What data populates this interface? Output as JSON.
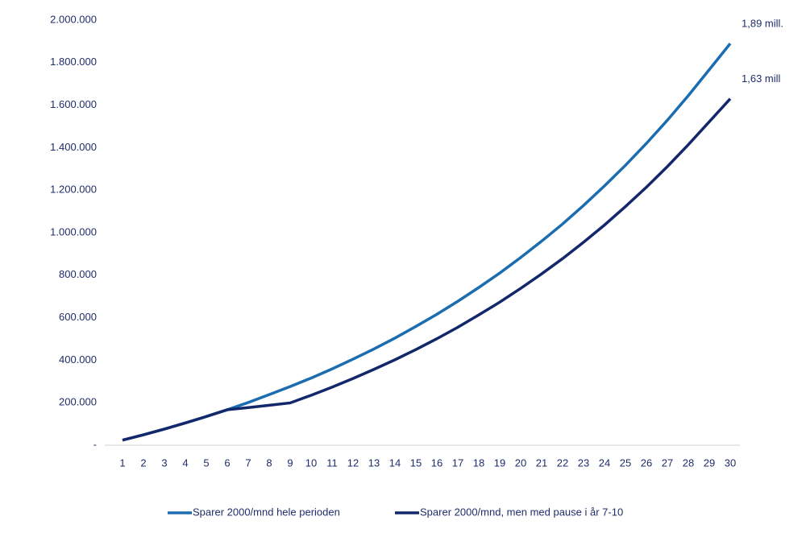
{
  "chart_data": {
    "type": "line",
    "categories": [
      "1",
      "2",
      "3",
      "4",
      "5",
      "6",
      "7",
      "8",
      "9",
      "10",
      "11",
      "12",
      "13",
      "14",
      "15",
      "16",
      "17",
      "18",
      "19",
      "20",
      "21",
      "22",
      "23",
      "24",
      "25",
      "26",
      "27",
      "28",
      "29",
      "30"
    ],
    "series": [
      {
        "name": "Sparer 2000/mnd hele perioden",
        "color": "#1b6db0",
        "values": [
          24000,
          49000,
          76000,
          105000,
          135000,
          167000,
          201000,
          238000,
          276000,
          316000,
          359000,
          405000,
          453000,
          504000,
          559000,
          616000,
          677000,
          742000,
          810000,
          883000,
          960000,
          1041000,
          1128000,
          1220000,
          1317000,
          1420000,
          1529000,
          1645000,
          1767000,
          1890000
        ]
      },
      {
        "name": "Sparer 2000/mnd, men med pause i år 7-10",
        "color": "#13286b",
        "values": [
          24000,
          49000,
          76000,
          105000,
          135000,
          167000,
          177000,
          188000,
          199000,
          235000,
          273000,
          314000,
          357000,
          402000,
          450000,
          501000,
          555000,
          613000,
          673000,
          738000,
          806000,
          878000,
          955000,
          1036000,
          1123000,
          1214000,
          1311000,
          1414000,
          1522000,
          1630000
        ]
      }
    ],
    "annotations": [
      "1,89 mill.",
      "1,63 mill"
    ],
    "ylim": [
      0,
      2000000
    ],
    "yticks": [
      {
        "value": 0,
        "label": "-"
      },
      {
        "value": 200000,
        "label": "200.000"
      },
      {
        "value": 400000,
        "label": "400.000"
      },
      {
        "value": 600000,
        "label": "600.000"
      },
      {
        "value": 800000,
        "label": "800.000"
      },
      {
        "value": 1000000,
        "label": "1.000.000"
      },
      {
        "value": 1200000,
        "label": "1.200.000"
      },
      {
        "value": 1400000,
        "label": "1.400.000"
      },
      {
        "value": 1600000,
        "label": "1.600.000"
      },
      {
        "value": 1800000,
        "label": "1.800.000"
      },
      {
        "value": 2000000,
        "label": "2.000.000"
      }
    ],
    "grid": false,
    "legend": "bottom"
  }
}
